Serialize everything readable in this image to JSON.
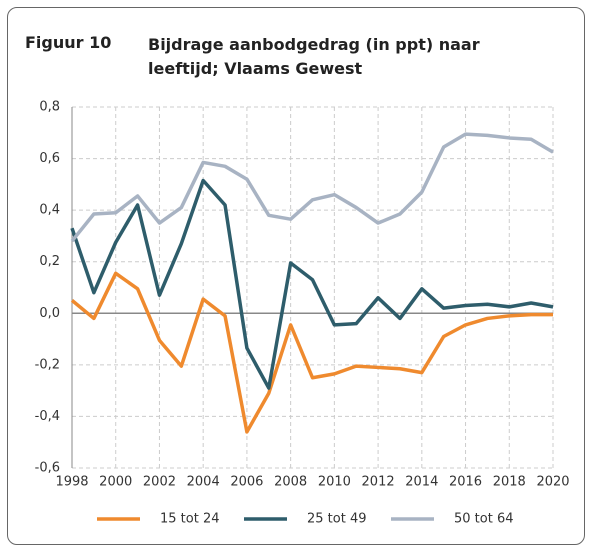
{
  "chart_data": {
    "type": "line",
    "figure_label": "Figuur 10",
    "title": "Bijdrage aanbodgedrag (in ppt) naar leeftijd; Vlaams Gewest",
    "x": [
      1998,
      1999,
      2000,
      2001,
      2002,
      2003,
      2004,
      2005,
      2006,
      2007,
      2008,
      2009,
      2010,
      2011,
      2012,
      2013,
      2014,
      2015,
      2016,
      2017,
      2018,
      2019,
      2020
    ],
    "xlim": [
      1998,
      2020
    ],
    "xticks": [
      1998,
      2000,
      2002,
      2004,
      2006,
      2008,
      2010,
      2012,
      2014,
      2016,
      2018,
      2020
    ],
    "ylim": [
      -0.6,
      0.8
    ],
    "yticks": [
      {
        "value": -0.6,
        "label": "-0,6"
      },
      {
        "value": -0.4,
        "label": "-0,4"
      },
      {
        "value": -0.2,
        "label": "-0,2"
      },
      {
        "value": 0,
        "label": "0,0"
      },
      {
        "value": 0.2,
        "label": "0,2"
      },
      {
        "value": 0.4,
        "label": "0,4"
      },
      {
        "value": 0.6,
        "label": "0,6"
      },
      {
        "value": 0.8,
        "label": "0,8"
      }
    ],
    "grid": true,
    "legend": "bottom",
    "series": [
      {
        "name": "15 tot 24",
        "color": "#ef8a2e",
        "values": [
          0.05,
          -0.02,
          0.155,
          0.095,
          -0.105,
          -0.205,
          0.055,
          -0.01,
          -0.46,
          -0.31,
          -0.045,
          -0.25,
          -0.235,
          -0.205,
          -0.21,
          -0.215,
          -0.23,
          -0.09,
          -0.045,
          -0.02,
          -0.01,
          -0.005,
          -0.005
        ]
      },
      {
        "name": "25 tot 49",
        "color": "#2e5d6b",
        "values": [
          0.33,
          0.08,
          0.275,
          0.42,
          0.07,
          0.27,
          0.515,
          0.42,
          -0.135,
          -0.29,
          0.195,
          0.13,
          -0.045,
          -0.04,
          0.06,
          -0.02,
          0.095,
          0.02,
          0.03,
          0.035,
          0.025,
          0.04,
          0.025
        ]
      },
      {
        "name": "50 tot 64",
        "color": "#a8b3c3",
        "values": [
          0.28,
          0.385,
          0.39,
          0.455,
          0.35,
          0.41,
          0.585,
          0.57,
          0.52,
          0.38,
          0.365,
          0.44,
          0.46,
          0.41,
          0.35,
          0.385,
          0.47,
          0.645,
          0.695,
          0.69,
          0.68,
          0.675,
          0.625
        ]
      }
    ]
  }
}
